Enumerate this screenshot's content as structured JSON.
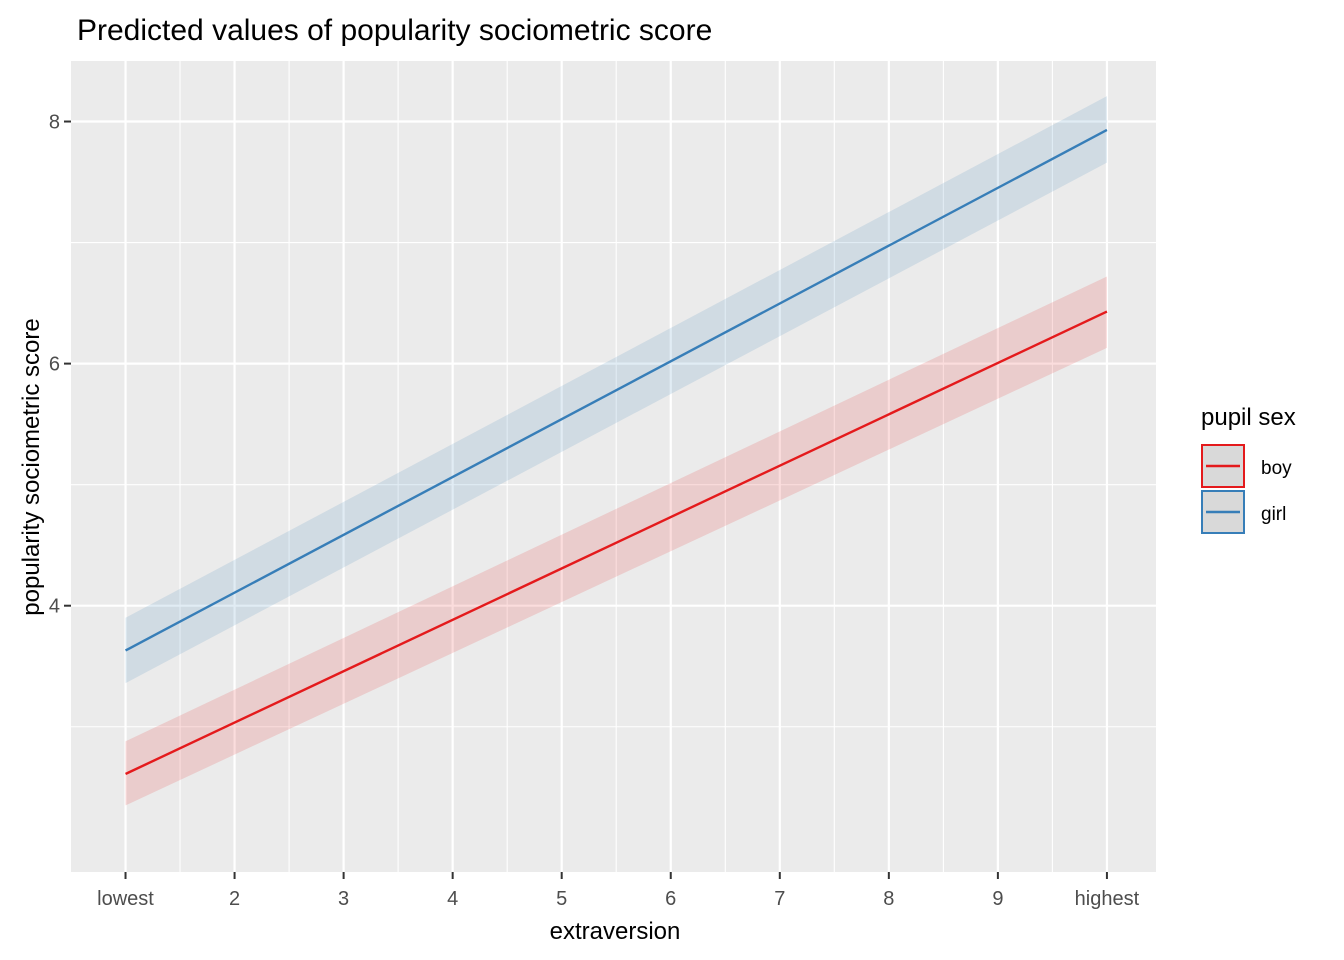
{
  "chart_data": {
    "type": "line",
    "title": "Predicted values of popularity sociometric score",
    "xlabel": "extraversion",
    "ylabel": "popularity sociometric score",
    "x_ticks": [
      {
        "value": 1,
        "label": "lowest"
      },
      {
        "value": 2,
        "label": "2"
      },
      {
        "value": 3,
        "label": "3"
      },
      {
        "value": 4,
        "label": "4"
      },
      {
        "value": 5,
        "label": "5"
      },
      {
        "value": 6,
        "label": "6"
      },
      {
        "value": 7,
        "label": "7"
      },
      {
        "value": 8,
        "label": "8"
      },
      {
        "value": 9,
        "label": "9"
      },
      {
        "value": 10,
        "label": "highest"
      }
    ],
    "y_ticks": [
      4,
      6,
      8
    ],
    "xlim": [
      0.5,
      10.45
    ],
    "ylim": [
      1.8,
      8.5
    ],
    "grid": true,
    "legend": {
      "title": "pupil sex",
      "position": "right"
    },
    "series": [
      {
        "name": "boy",
        "color": "#e41a1c",
        "x": [
          1,
          10
        ],
        "y": [
          2.61,
          6.43
        ],
        "ci_lower": [
          2.35,
          6.13
        ],
        "ci_upper": [
          2.88,
          6.72
        ]
      },
      {
        "name": "girl",
        "color": "#377eb8",
        "x": [
          1,
          10
        ],
        "y": [
          3.63,
          7.93
        ],
        "ci_lower": [
          3.36,
          7.66
        ],
        "ci_upper": [
          3.9,
          8.21
        ]
      }
    ]
  }
}
